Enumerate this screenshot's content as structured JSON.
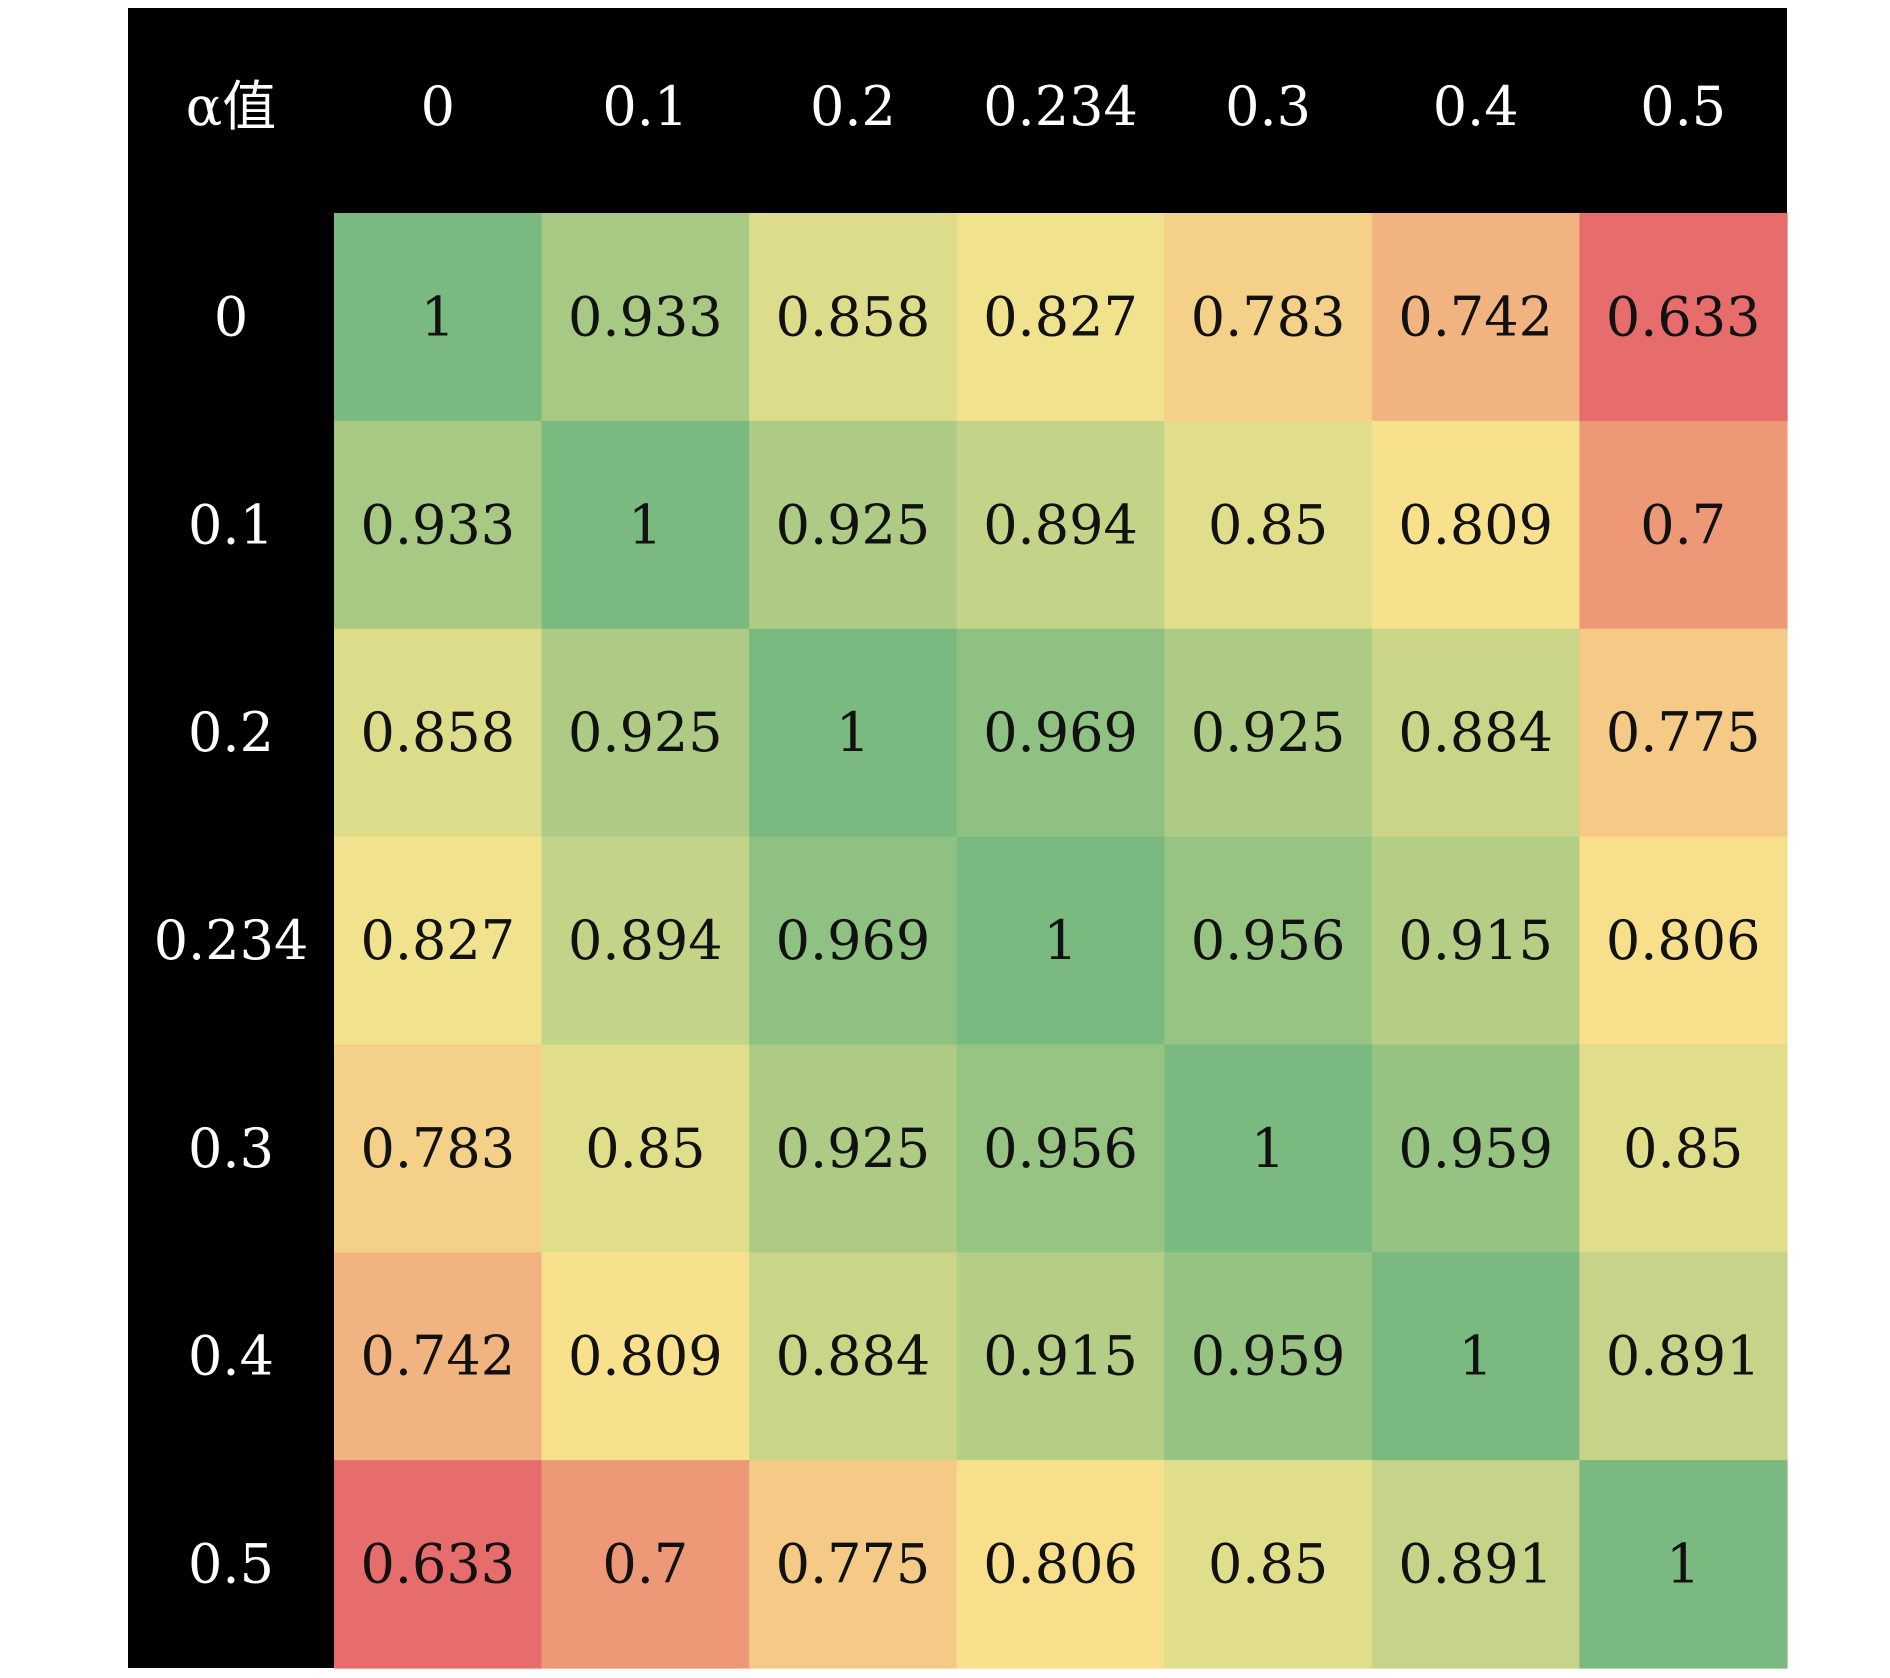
{
  "chart_data": {
    "type": "heatmap",
    "corner_label": "α值",
    "x_categories": [
      "0",
      "0.1",
      "0.2",
      "0.234",
      "0.3",
      "0.4",
      "0.5"
    ],
    "y_categories": [
      "0",
      "0.1",
      "0.2",
      "0.234",
      "0.3",
      "0.4",
      "0.5"
    ],
    "values": [
      [
        "1",
        "0.933",
        "0.858",
        "0.827",
        "0.783",
        "0.742",
        "0.633"
      ],
      [
        "0.933",
        "1",
        "0.925",
        "0.894",
        "0.85",
        "0.809",
        "0.7"
      ],
      [
        "0.858",
        "0.925",
        "1",
        "0.969",
        "0.925",
        "0.884",
        "0.775"
      ],
      [
        "0.827",
        "0.894",
        "0.969",
        "1",
        "0.956",
        "0.915",
        "0.806"
      ],
      [
        "0.783",
        "0.85",
        "0.925",
        "0.956",
        "1",
        "0.959",
        "0.85"
      ],
      [
        "0.742",
        "0.809",
        "0.884",
        "0.915",
        "0.959",
        "1",
        "0.891"
      ],
      [
        "0.633",
        "0.7",
        "0.775",
        "0.806",
        "0.85",
        "0.891",
        "1"
      ]
    ],
    "color_scale": {
      "low": "#e76c6c",
      "mid": "#f8e68e",
      "high": "#7ab97f"
    },
    "header_background": "#000000",
    "header_text_color": "#ffffff",
    "grid": false,
    "legend": "none"
  }
}
